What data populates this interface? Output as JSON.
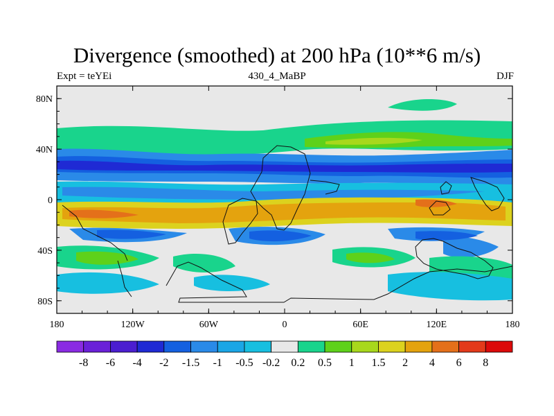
{
  "chart_data": {
    "type": "filled-contour map",
    "title": "Divergence (smoothed) at 200 hPa (10**6 m/s)",
    "subtitle_left": "Expt = teYEi",
    "subtitle_center": "430_4_MaBP",
    "subtitle_right": "DJF",
    "x_range": [
      -180,
      180
    ],
    "y_range": [
      -90,
      90
    ],
    "x_ticks": [
      {
        "value": -180,
        "label": "180"
      },
      {
        "value": -120,
        "label": "120W"
      },
      {
        "value": -60,
        "label": "60W"
      },
      {
        "value": 0,
        "label": "0"
      },
      {
        "value": 60,
        "label": "60E"
      },
      {
        "value": 120,
        "label": "120E"
      },
      {
        "value": 180,
        "label": "180"
      }
    ],
    "y_ticks": [
      {
        "value": 80,
        "label": "80N"
      },
      {
        "value": 40,
        "label": "40N"
      },
      {
        "value": 0,
        "label": "0"
      },
      {
        "value": -40,
        "label": "40S"
      },
      {
        "value": -80,
        "label": "80S"
      }
    ],
    "colorbar": {
      "levels": [
        "-8",
        "-6",
        "-4",
        "-2",
        "-1.5",
        "-1",
        "-0.5",
        "-0.2",
        "0.2",
        "0.5",
        "1",
        "1.5",
        "2",
        "4",
        "6",
        "8"
      ],
      "colors": [
        "#8a2be2",
        "#6a20d8",
        "#4b1ed0",
        "#1f2ad4",
        "#1460e0",
        "#2a8ae8",
        "#1aa6e6",
        "#17bfe0",
        "#e8e8e8",
        "#19d48c",
        "#5ed11a",
        "#a8d81c",
        "#dcd21e",
        "#e4a30e",
        "#e4701a",
        "#e33a1a",
        "#dc0a0a"
      ]
    },
    "features": [
      {
        "name": "equatorial-divergence-band",
        "lat": -12,
        "value": 2
      },
      {
        "name": "northern-convergence-band",
        "lat": 25,
        "value": -2
      },
      {
        "name": "equatorial-convergence-band",
        "lat": 3,
        "value": -1.5
      }
    ]
  }
}
